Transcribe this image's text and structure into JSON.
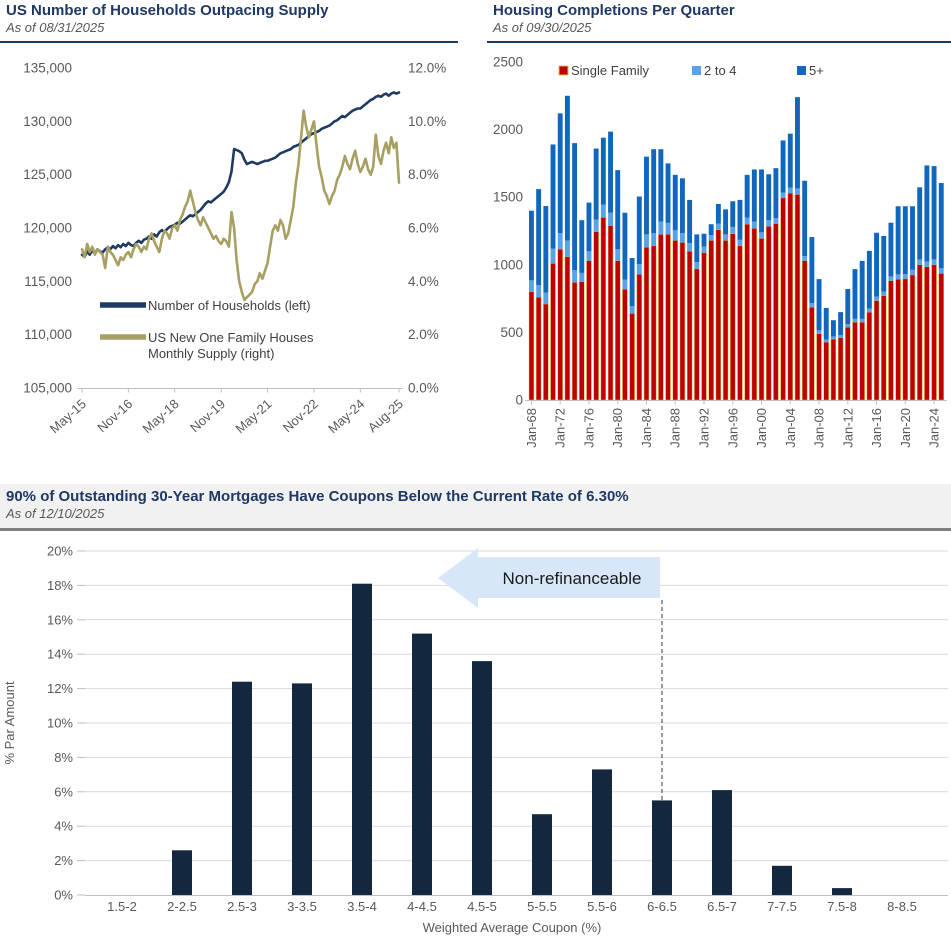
{
  "chart_data": [
    {
      "type": "line",
      "title": "US Number of Households Outpacing Supply",
      "subtitle": "As of 08/31/2025",
      "left_axis": {
        "ticks": [
          "135,000",
          "130,000",
          "125,000",
          "120,000",
          "115,000",
          "110,000",
          "105,000"
        ],
        "max": 135000,
        "min": 105000
      },
      "right_axis": {
        "ticks": [
          "12.0%",
          "10.0%",
          "8.0%",
          "6.0%",
          "4.0%",
          "2.0%",
          "0.0%"
        ],
        "max": 12,
        "min": 0
      },
      "x_tick_labels": [
        "May-15",
        "Nov-16",
        "May-18",
        "Nov-19",
        "May-21",
        "Nov-22",
        "May-24",
        "Aug-25"
      ],
      "x_tick_month_index": [
        0,
        18,
        36,
        54,
        72,
        90,
        108,
        123
      ],
      "legend_position": "inside-bottom-left",
      "grid": false,
      "series": [
        {
          "name": "Number of Households (left)",
          "legend_lines": [
            "Number of Households (left)"
          ],
          "axis": "left",
          "color": "#1F3B63",
          "unit": "thousands",
          "monthly_values": [
            117.5,
            117.3,
            117.8,
            117.5,
            117.9,
            117.6,
            118.0,
            117.8,
            117.7,
            118.0,
            118.2,
            118.0,
            118.3,
            118.1,
            118.4,
            118.2,
            118.5,
            118.3,
            118.6,
            118.4,
            118.3,
            118.6,
            118.8,
            118.6,
            118.9,
            119.0,
            119.2,
            119.0,
            119.4,
            119.2,
            119.6,
            119.8,
            119.6,
            119.9,
            120.1,
            120.2,
            120.3,
            120.5,
            120.4,
            120.6,
            120.8,
            121.0,
            121.2,
            121.1,
            121.3,
            121.5,
            121.7,
            122.0,
            122.3,
            122.5,
            122.4,
            122.6,
            122.8,
            123.0,
            123.2,
            123.4,
            123.8,
            124.3,
            125.3,
            127.4,
            127.3,
            127.2,
            127.0,
            126.4,
            126.0,
            126.1,
            126.2,
            126.1,
            126.0,
            126.1,
            126.2,
            126.3,
            126.3,
            126.4,
            126.5,
            126.6,
            126.8,
            127.0,
            127.1,
            127.2,
            127.3,
            127.4,
            127.6,
            127.7,
            127.8,
            128.0,
            128.2,
            128.4,
            128.6,
            128.8,
            128.9,
            129.0,
            129.1,
            129.3,
            129.4,
            129.5,
            129.6,
            129.8,
            130.0,
            130.1,
            130.3,
            130.5,
            130.4,
            130.6,
            130.8,
            131.0,
            131.1,
            131.2,
            131.2,
            131.4,
            131.6,
            131.8,
            132.0,
            132.1,
            132.3,
            132.4,
            132.3,
            132.5,
            132.6,
            132.4,
            132.6,
            132.7,
            132.6,
            132.7
          ]
        },
        {
          "name": "US New One Family Houses Monthly Supply (right)",
          "legend_lines": [
            "US New One Family Houses",
            "Monthly Supply (right)"
          ],
          "axis": "right",
          "color": "#A89F63",
          "unit": "months-supply-%scale",
          "monthly_values": [
            5.2,
            4.9,
            5.4,
            5.1,
            5.3,
            5.0,
            5.2,
            5.1,
            5.0,
            4.5,
            5.3,
            5.1,
            5.0,
            4.8,
            4.6,
            4.9,
            4.8,
            5.0,
            5.1,
            4.9,
            5.2,
            5.4,
            5.3,
            5.1,
            5.3,
            5.2,
            5.6,
            5.8,
            5.5,
            5.3,
            5.1,
            5.6,
            5.9,
            5.8,
            5.6,
            6.0,
            6.1,
            5.9,
            6.3,
            6.5,
            6.8,
            7.0,
            7.4,
            7.0,
            6.6,
            6.3,
            6.1,
            6.4,
            6.2,
            6.0,
            5.8,
            5.6,
            5.7,
            5.5,
            5.4,
            5.6,
            5.5,
            5.3,
            6.6,
            6.0,
            4.8,
            4.0,
            3.6,
            3.3,
            3.4,
            3.5,
            3.6,
            3.9,
            4.0,
            4.3,
            4.1,
            4.4,
            4.7,
            5.3,
            5.9,
            6.1,
            5.9,
            6.3,
            6.1,
            5.6,
            5.8,
            6.3,
            6.8,
            7.7,
            8.4,
            9.4,
            10.4,
            9.8,
            9.4,
            9.7,
            10.0,
            9.1,
            8.3,
            7.9,
            7.4,
            7.2,
            6.9,
            7.2,
            7.4,
            7.8,
            8.0,
            8.3,
            8.7,
            8.4,
            8.2,
            8.6,
            8.9,
            8.4,
            8.1,
            8.3,
            8.6,
            8.2,
            8.0,
            8.3,
            9.5,
            8.7,
            8.4,
            8.9,
            9.2,
            8.8,
            9.4,
            9.0,
            9.2,
            7.7
          ]
        }
      ]
    },
    {
      "type": "stacked-bar",
      "title": "Housing Completions Per Quarter",
      "subtitle": "As of 09/30/2025",
      "y_ticks": [
        "2500",
        "2000",
        "1500",
        "1000",
        "500",
        "0"
      ],
      "ylim": [
        0,
        2500
      ],
      "x_tick_labels": [
        "Jan-68",
        "Jan-72",
        "Jan-76",
        "Jan-80",
        "Jan-84",
        "Jan-88",
        "Jan-92",
        "Jan-96",
        "Jan-00",
        "Jan-04",
        "Jan-08",
        "Jan-12",
        "Jan-16",
        "Jan-20",
        "Jan-24"
      ],
      "x_tick_every_n_bars": 4,
      "legend_position": "inside-top",
      "grid": false,
      "bar_outline_color": "#E2B959",
      "series": [
        {
          "name": "Single Family",
          "color": "#C00000",
          "values": [
            800,
            760,
            710,
            1010,
            1115,
            1060,
            870,
            875,
            1030,
            1245,
            1350,
            1290,
            1030,
            820,
            640,
            930,
            1130,
            1140,
            1225,
            1225,
            1180,
            1165,
            1100,
            970,
            1090,
            1180,
            1260,
            1180,
            1230,
            1140,
            1300,
            1270,
            1195,
            1285,
            1305,
            1495,
            1530,
            1520,
            1030,
            686,
            490,
            428,
            450,
            460,
            539,
            575,
            575,
            649,
            735,
            772,
            882,
            894,
            896,
            925,
            1000,
            985,
            1000,
            936
          ]
        },
        {
          "name": "2 to 4",
          "color": "#5AA2E8",
          "values": [
            85,
            90,
            85,
            110,
            120,
            120,
            90,
            65,
            70,
            90,
            95,
            95,
            85,
            70,
            55,
            75,
            95,
            95,
            95,
            85,
            75,
            70,
            60,
            50,
            45,
            40,
            45,
            45,
            50,
            45,
            50,
            50,
            45,
            45,
            40,
            40,
            40,
            45,
            35,
            30,
            25,
            20,
            20,
            20,
            22,
            25,
            25,
            28,
            30,
            30,
            32,
            35,
            35,
            38,
            40,
            40,
            40,
            38
          ]
        },
        {
          "name": "5+",
          "color": "#1166BE",
          "values": [
            515,
            710,
            640,
            770,
            885,
            1070,
            940,
            390,
            360,
            525,
            495,
            600,
            585,
            495,
            355,
            500,
            575,
            620,
            535,
            440,
            410,
            405,
            320,
            205,
            95,
            80,
            145,
            185,
            190,
            295,
            315,
            385,
            465,
            340,
            370,
            385,
            400,
            675,
            557,
            489,
            379,
            233,
            120,
            170,
            260,
            368,
            429,
            426,
            472,
            411,
            397,
            504,
            502,
            470,
            533,
            710,
            690,
            631
          ]
        }
      ]
    },
    {
      "type": "bar",
      "title": "90% of Outstanding 30-Year Mortgages Have Coupons Below the Current Rate of 6.30%",
      "subtitle": "As of 12/10/2025",
      "categories": [
        "1.5-2",
        "2-2.5",
        "2.5-3",
        "3-3.5",
        "3.5-4",
        "4-4.5",
        "4.5-5",
        "5-5.5",
        "5.5-6",
        "6-6.5",
        "6.5-7",
        "7-7.5",
        "7.5-8",
        "8-8.5"
      ],
      "values": [
        0,
        2.6,
        12.4,
        12.3,
        18.1,
        15.2,
        13.6,
        4.7,
        7.3,
        5.5,
        6.1,
        1.7,
        0.4,
        0
      ],
      "y_ticks": [
        "20%",
        "18%",
        "16%",
        "14%",
        "12%",
        "10%",
        "8%",
        "6%",
        "4%",
        "2%",
        "0%"
      ],
      "ylim": [
        0,
        20
      ],
      "ylabel": "% Par Amount",
      "xlabel": "Weighted Average Coupon (%)",
      "grid": true,
      "bar_color": "#13283F",
      "annotation": {
        "text": "Non-refinanceable",
        "fill": "#D7E7F8",
        "points_to_category": "6-6.5"
      }
    }
  ]
}
